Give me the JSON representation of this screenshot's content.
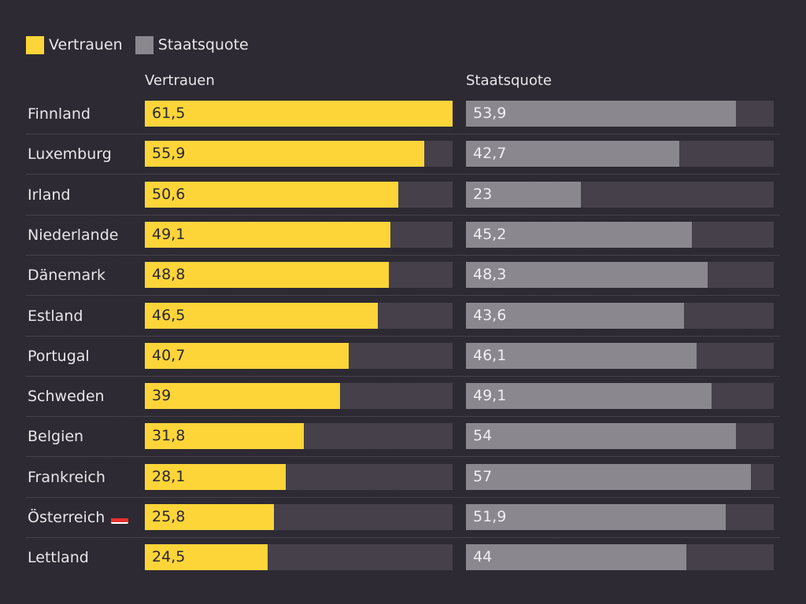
{
  "colors": {
    "vertrauen": "#fdd539",
    "staatsquote": "#8b878f",
    "track": "#45404a"
  },
  "legend": [
    {
      "label": "Vertrauen",
      "color": "#fdd539"
    },
    {
      "label": "Staatsquote",
      "color": "#8b878f"
    }
  ],
  "chart_data": {
    "type": "bar",
    "orientation": "horizontal",
    "grid": false,
    "legend_position": "top-left",
    "categories": [
      "Finnland",
      "Luxemburg",
      "Irland",
      "Niederlande",
      "Dänemark",
      "Estland",
      "Portugal",
      "Schweden",
      "Belgien",
      "Frankreich",
      "Österreich",
      "Lettland"
    ],
    "series": [
      {
        "name": "Vertrauen",
        "values": [
          61.5,
          55.9,
          50.6,
          49.1,
          48.8,
          46.5,
          40.7,
          39,
          31.8,
          28.1,
          25.8,
          24.5
        ],
        "labels": [
          "61,5",
          "55,9",
          "50,6",
          "49,1",
          "48,8",
          "46,5",
          "40,7",
          "39",
          "31,8",
          "28,1",
          "25,8",
          "24,5"
        ],
        "max": 61.5
      },
      {
        "name": "Staatsquote",
        "values": [
          53.9,
          42.7,
          23,
          45.2,
          48.3,
          43.6,
          46.1,
          49.1,
          54,
          57,
          51.9,
          44
        ],
        "labels": [
          "53,9",
          "42,7",
          "23",
          "45,2",
          "48,3",
          "43,6",
          "46,1",
          "49,1",
          "54",
          "57",
          "51,9",
          "44"
        ],
        "max": 61.5
      }
    ],
    "flag_icons": {
      "Österreich": "austria-flag-icon"
    }
  }
}
